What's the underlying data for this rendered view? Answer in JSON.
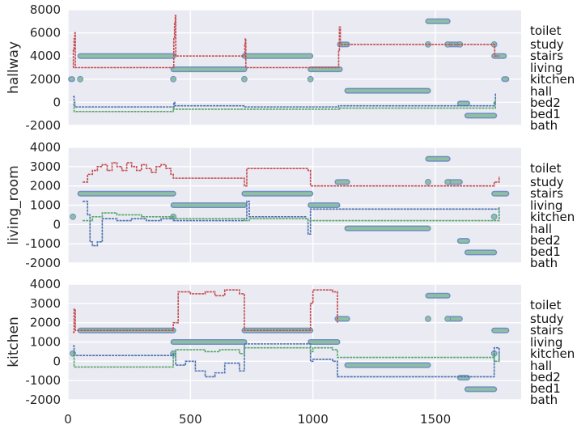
{
  "colors": {
    "background": "#eaeaf2",
    "series_blue": "#4c72b0",
    "series_green": "#55a868",
    "series_red": "#c44e52",
    "truth_fill": "#8fbf9f",
    "truth_edge": "#6f8fc7"
  },
  "chart_data": [
    {
      "type": "line",
      "ylabel": "hallway",
      "ylim": [
        -2000,
        8000
      ],
      "yticks": [
        -2000,
        0,
        2000,
        4000,
        6000,
        8000
      ],
      "xlim": [
        0,
        1850
      ],
      "xticks": [],
      "room_labels": [
        "toilet",
        "study",
        "stairs",
        "living",
        "kitchen",
        "hall",
        "bed2",
        "bed1",
        "bath"
      ],
      "truth_steps": [
        {
          "x0": 12,
          "x1": 18,
          "y": 2000
        },
        {
          "x0": 50,
          "x1": 430,
          "y": 4000
        },
        {
          "x0": 430,
          "x1": 720,
          "y": 2850
        },
        {
          "x0": 720,
          "x1": 990,
          "y": 4000
        },
        {
          "x0": 990,
          "x1": 1110,
          "y": 2850
        },
        {
          "x0": 1110,
          "x1": 1140,
          "y": 5000
        },
        {
          "x0": 1140,
          "x1": 1470,
          "y": 1000
        },
        {
          "x0": 1470,
          "x1": 1550,
          "y": 7000
        },
        {
          "x0": 1550,
          "x1": 1600,
          "y": 5000
        },
        {
          "x0": 1600,
          "x1": 1630,
          "y": -100
        },
        {
          "x0": 1630,
          "x1": 1740,
          "y": -1150
        },
        {
          "x0": 1740,
          "x1": 1780,
          "y": 4000
        },
        {
          "x0": 1780,
          "x1": 1790,
          "y": 2000
        }
      ],
      "truth_points": [
        [
          50,
          2000
        ],
        [
          430,
          2000
        ],
        [
          720,
          2000
        ],
        [
          990,
          2000
        ],
        [
          1470,
          5000
        ],
        [
          1550,
          5000
        ],
        [
          1600,
          5000
        ],
        [
          1740,
          5000
        ]
      ],
      "series": [
        {
          "color": "#c44e52",
          "points": [
            [
              20,
              3000
            ],
            [
              22,
              4500
            ],
            [
              25,
              5500
            ],
            [
              28,
              6000
            ],
            [
              30,
              3000
            ],
            [
              430,
              3000
            ],
            [
              432,
              5500
            ],
            [
              435,
              6800
            ],
            [
              438,
              7500
            ],
            [
              440,
              4000
            ],
            [
              720,
              4000
            ],
            [
              722,
              5000
            ],
            [
              724,
              5500
            ],
            [
              726,
              3000
            ],
            [
              990,
              3000
            ],
            [
              1100,
              3000
            ],
            [
              1105,
              4500
            ],
            [
              1108,
              6500
            ],
            [
              1112,
              5000
            ],
            [
              1740,
              5000
            ],
            [
              1742,
              4000
            ],
            [
              1760,
              4000
            ]
          ]
        },
        {
          "color": "#4c72b0",
          "points": [
            [
              20,
              500
            ],
            [
              25,
              0
            ],
            [
              28,
              -400
            ],
            [
              430,
              -400
            ],
            [
              432,
              0
            ],
            [
              436,
              -300
            ],
            [
              720,
              -300
            ],
            [
              722,
              -400
            ],
            [
              1100,
              -400
            ],
            [
              1105,
              -300
            ],
            [
              1740,
              0
            ],
            [
              1745,
              800
            ]
          ]
        },
        {
          "color": "#55a868",
          "points": [
            [
              20,
              -200
            ],
            [
              25,
              -800
            ],
            [
              430,
              -400
            ],
            [
              432,
              -600
            ],
            [
              720,
              -600
            ],
            [
              1110,
              -500
            ],
            [
              1745,
              300
            ]
          ]
        }
      ]
    },
    {
      "type": "line",
      "ylabel": "living_room",
      "ylim": [
        -2000,
        4000
      ],
      "yticks": [
        -2000,
        -1000,
        0,
        1000,
        2000,
        3000,
        4000
      ],
      "xlim": [
        0,
        1850
      ],
      "xticks": [],
      "room_labels": [
        "toilet",
        "study",
        "stairs",
        "living",
        "kitchen",
        "hall",
        "bed2",
        "bed1",
        "bath"
      ],
      "truth_steps": [
        {
          "x0": 50,
          "x1": 430,
          "y": 1600
        },
        {
          "x0": 430,
          "x1": 720,
          "y": 1000
        },
        {
          "x0": 720,
          "x1": 990,
          "y": 1600
        },
        {
          "x0": 990,
          "x1": 1100,
          "y": 1000
        },
        {
          "x0": 1100,
          "x1": 1140,
          "y": 2200
        },
        {
          "x0": 1140,
          "x1": 1470,
          "y": -200
        },
        {
          "x0": 1470,
          "x1": 1550,
          "y": 3400
        },
        {
          "x0": 1550,
          "x1": 1600,
          "y": 2200
        },
        {
          "x0": 1600,
          "x1": 1630,
          "y": -850
        },
        {
          "x0": 1630,
          "x1": 1740,
          "y": -1450
        },
        {
          "x0": 1740,
          "x1": 1790,
          "y": 1600
        }
      ],
      "truth_points": [
        [
          20,
          400
        ],
        [
          430,
          400
        ],
        [
          1470,
          2200
        ],
        [
          1550,
          2200
        ],
        [
          1740,
          400
        ]
      ],
      "series": [
        {
          "color": "#c44e52",
          "points": [
            [
              60,
              2200
            ],
            [
              80,
              2600
            ],
            [
              100,
              2800
            ],
            [
              120,
              3000
            ],
            [
              140,
              3100
            ],
            [
              160,
              2800
            ],
            [
              180,
              3200
            ],
            [
              200,
              3000
            ],
            [
              220,
              2800
            ],
            [
              240,
              3200
            ],
            [
              260,
              3000
            ],
            [
              280,
              2800
            ],
            [
              300,
              3100
            ],
            [
              320,
              2900
            ],
            [
              340,
              2700
            ],
            [
              360,
              3000
            ],
            [
              380,
              3100
            ],
            [
              400,
              2900
            ],
            [
              420,
              2600
            ],
            [
              430,
              2400
            ],
            [
              720,
              2000
            ],
            [
              730,
              2900
            ],
            [
              980,
              2800
            ],
            [
              990,
              2000
            ],
            [
              1740,
              2200
            ],
            [
              1760,
              2500
            ]
          ]
        },
        {
          "color": "#4c72b0",
          "points": [
            [
              60,
              1200
            ],
            [
              80,
              500
            ],
            [
              90,
              -900
            ],
            [
              100,
              -1100
            ],
            [
              120,
              -900
            ],
            [
              140,
              300
            ],
            [
              200,
              200
            ],
            [
              260,
              300
            ],
            [
              320,
              200
            ],
            [
              380,
              300
            ],
            [
              430,
              200
            ],
            [
              720,
              300
            ],
            [
              730,
              1200
            ],
            [
              740,
              400
            ],
            [
              900,
              400
            ],
            [
              970,
              300
            ],
            [
              980,
              -500
            ],
            [
              990,
              800
            ],
            [
              1740,
              800
            ],
            [
              1760,
              300
            ]
          ]
        },
        {
          "color": "#55a868",
          "points": [
            [
              60,
              200
            ],
            [
              100,
              400
            ],
            [
              140,
              600
            ],
            [
              200,
              500
            ],
            [
              300,
              400
            ],
            [
              430,
              300
            ],
            [
              720,
              200
            ],
            [
              740,
              300
            ],
            [
              980,
              200
            ],
            [
              1740,
              200
            ],
            [
              1760,
              900
            ]
          ]
        }
      ]
    },
    {
      "type": "line",
      "ylabel": "kitchen",
      "ylim": [
        -2000,
        4000
      ],
      "yticks": [
        -2000,
        -1000,
        0,
        1000,
        2000,
        3000,
        4000
      ],
      "xlim": [
        0,
        1850
      ],
      "xticks": [
        0,
        500,
        1000,
        1500
      ],
      "room_labels": [
        "toilet",
        "study",
        "stairs",
        "living",
        "kitchen",
        "hall",
        "bed2",
        "bed1",
        "bath"
      ],
      "truth_steps": [
        {
          "x0": 50,
          "x1": 430,
          "y": 1600
        },
        {
          "x0": 430,
          "x1": 720,
          "y": 1000
        },
        {
          "x0": 720,
          "x1": 990,
          "y": 1600
        },
        {
          "x0": 990,
          "x1": 1100,
          "y": 1000
        },
        {
          "x0": 1100,
          "x1": 1140,
          "y": 2200
        },
        {
          "x0": 1140,
          "x1": 1470,
          "y": -200
        },
        {
          "x0": 1470,
          "x1": 1550,
          "y": 3400
        },
        {
          "x0": 1550,
          "x1": 1600,
          "y": 2200
        },
        {
          "x0": 1600,
          "x1": 1630,
          "y": -850
        },
        {
          "x0": 1630,
          "x1": 1740,
          "y": -1450
        },
        {
          "x0": 1740,
          "x1": 1790,
          "y": 1600
        }
      ],
      "truth_points": [
        [
          20,
          400
        ],
        [
          430,
          400
        ],
        [
          1470,
          2200
        ],
        [
          1550,
          2200
        ],
        [
          1740,
          400
        ]
      ],
      "series": [
        {
          "color": "#c44e52",
          "points": [
            [
              20,
              1500
            ],
            [
              25,
              2700
            ],
            [
              30,
              1600
            ],
            [
              430,
              2000
            ],
            [
              450,
              3600
            ],
            [
              500,
              3500
            ],
            [
              560,
              3600
            ],
            [
              600,
              3400
            ],
            [
              640,
              3700
            ],
            [
              700,
              3500
            ],
            [
              720,
              1600
            ],
            [
              990,
              3000
            ],
            [
              1000,
              3700
            ],
            [
              1080,
              3600
            ],
            [
              1100,
              2000
            ]
          ]
        },
        {
          "color": "#4c72b0",
          "points": [
            [
              20,
              800
            ],
            [
              25,
              300
            ],
            [
              430,
              400
            ],
            [
              440,
              -200
            ],
            [
              480,
              0
            ],
            [
              520,
              -500
            ],
            [
              560,
              -800
            ],
            [
              600,
              -600
            ],
            [
              640,
              -100
            ],
            [
              700,
              -500
            ],
            [
              720,
              900
            ],
            [
              990,
              0
            ],
            [
              1000,
              100
            ],
            [
              1080,
              0
            ],
            [
              1100,
              -800
            ],
            [
              1740,
              700
            ],
            [
              1760,
              0
            ]
          ]
        },
        {
          "color": "#55a868",
          "points": [
            [
              20,
              300
            ],
            [
              25,
              -300
            ],
            [
              430,
              200
            ],
            [
              440,
              600
            ],
            [
              500,
              600
            ],
            [
              560,
              500
            ],
            [
              620,
              600
            ],
            [
              700,
              400
            ],
            [
              720,
              700
            ],
            [
              990,
              500
            ],
            [
              1000,
              700
            ],
            [
              1080,
              600
            ],
            [
              1100,
              200
            ],
            [
              1740,
              0
            ],
            [
              1760,
              400
            ]
          ]
        }
      ]
    }
  ]
}
